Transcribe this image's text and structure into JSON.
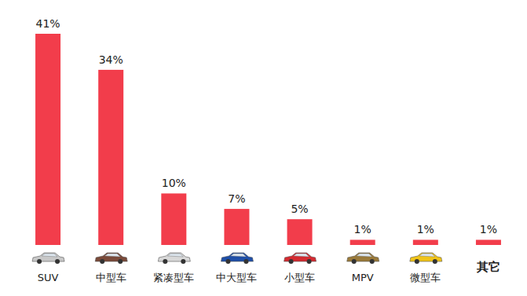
{
  "chart_data": {
    "type": "bar",
    "categories": [
      "SUV",
      "中型车",
      "紧凑型车",
      "中大型车",
      "小型车",
      "MPV",
      "微型车",
      "其它"
    ],
    "values": [
      41,
      34,
      10,
      7,
      5,
      1,
      1,
      1
    ],
    "value_labels": [
      "41%",
      "34%",
      "10%",
      "7%",
      "5%",
      "1%",
      "1%",
      "1%"
    ],
    "color": "#f23d4b",
    "ylim": [
      0,
      41
    ],
    "data_labels": true,
    "tick_labels": "x",
    "grid": false
  }
}
